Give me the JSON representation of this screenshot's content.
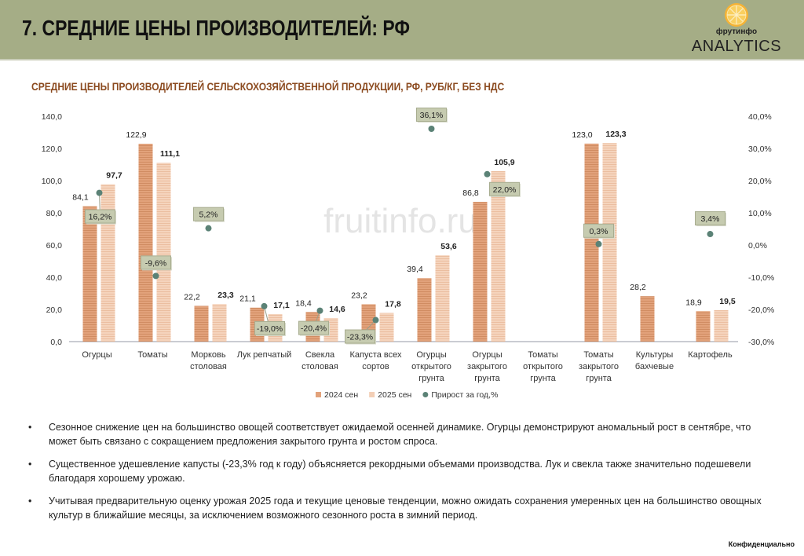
{
  "header": {
    "title": "7. СРЕДНИЕ ЦЕНЫ ПРОИЗВОДИТЕЛЕЙ: РФ"
  },
  "logo": {
    "brand": "фрутинфо",
    "analytics": "ANALYTICS"
  },
  "watermark": "fruitinfo.ru",
  "chart_data": {
    "type": "bar",
    "title": "СРЕДНИЕ ЦЕНЫ ПРОИЗВОДИТЕЛЕЙ СЕЛЬСКОХОЗЯЙСТВЕННОЙ ПРОДУКЦИИ, РФ, РУБ/КГ, БЕЗ НДС",
    "categories": [
      [
        "Огурцы"
      ],
      [
        "Томаты"
      ],
      [
        "Морковь",
        "столовая"
      ],
      [
        "Лук репчатый"
      ],
      [
        "Свекла",
        "столовая"
      ],
      [
        "Капуста всех",
        "сортов"
      ],
      [
        "Огурцы",
        "открытого",
        "грунта"
      ],
      [
        "Огурцы",
        "закрытого",
        "грунта"
      ],
      [
        "Томаты",
        "открытого",
        "грунта"
      ],
      [
        "Томаты",
        "закрытого",
        "грунта"
      ],
      [
        "Культуры",
        "бахчевые"
      ],
      [
        "Картофель"
      ]
    ],
    "series": [
      {
        "name": "2024 сен",
        "type": "bar",
        "axis": "left",
        "color": "#e2a27b",
        "values": [
          84.1,
          122.9,
          22.2,
          21.1,
          18.4,
          23.2,
          39.4,
          86.8,
          null,
          123.0,
          28.2,
          18.9
        ],
        "labels": [
          "84,1",
          "122,9",
          "22,2",
          "21,1",
          "18,4",
          "23,2",
          "39,4",
          "86,8",
          null,
          "123,0",
          "28,2",
          "18,9"
        ]
      },
      {
        "name": "2025 сен",
        "type": "bar",
        "axis": "left",
        "color": "#f3cfb6",
        "values": [
          97.7,
          111.1,
          23.3,
          17.1,
          14.6,
          17.8,
          53.6,
          105.9,
          null,
          123.3,
          null,
          19.5
        ],
        "labels": [
          "97,7",
          "111,1",
          "23,3",
          "17,1",
          "14,6",
          "17,8",
          "53,6",
          "105,9",
          null,
          "123,3",
          null,
          "19,5"
        ]
      },
      {
        "name": "Прирост за год,%",
        "type": "scatter",
        "axis": "right",
        "color": "#5b8276",
        "values": [
          16.2,
          -9.6,
          5.2,
          -19.0,
          -20.4,
          -23.3,
          36.1,
          22.0,
          null,
          0.3,
          null,
          3.4
        ],
        "labels": [
          "16,2%",
          "-9,6%",
          "5,2%",
          "-19,0%",
          "-20,4%",
          "-23,3%",
          "36,1%",
          "22,0%",
          null,
          "0,3%",
          null,
          "3,4%"
        ]
      }
    ],
    "y_left": {
      "range": [
        0,
        140
      ],
      "ticks": [
        "0,0",
        "20,0",
        "40,0",
        "60,0",
        "80,0",
        "100,0",
        "120,0",
        "140,0"
      ]
    },
    "y_right": {
      "range": [
        -30,
        40
      ],
      "ticks": [
        "-30,0%",
        "-20,0%",
        "-10,0%",
        "0,0%",
        "10,0%",
        "20,0%",
        "30,0%",
        "40,0%"
      ]
    },
    "grid": false,
    "legend": "bottom"
  },
  "bullets": [
    "Сезонное снижение цен на большинство овощей соответствует ожидаемой осенней динамике. Огурцы демонстрируют аномальный рост в сентябре, что может быть связано с сокращением предложения закрытого грунта и ростом спроса.",
    "Существенное удешевление капусты (-23,3% год к году) объясняется рекордными объемами производства. Лук и свекла также значительно подешевели благодаря хорошему урожаю.",
    "Учитывая предварительную оценку урожая 2025 года и текущие ценовые тенденции, можно ожидать сохранения умеренных цен на большинство овощных культур в ближайшие месяцы, за исключением возможного сезонного роста в зимний период."
  ],
  "footer": "Конфиденциально"
}
